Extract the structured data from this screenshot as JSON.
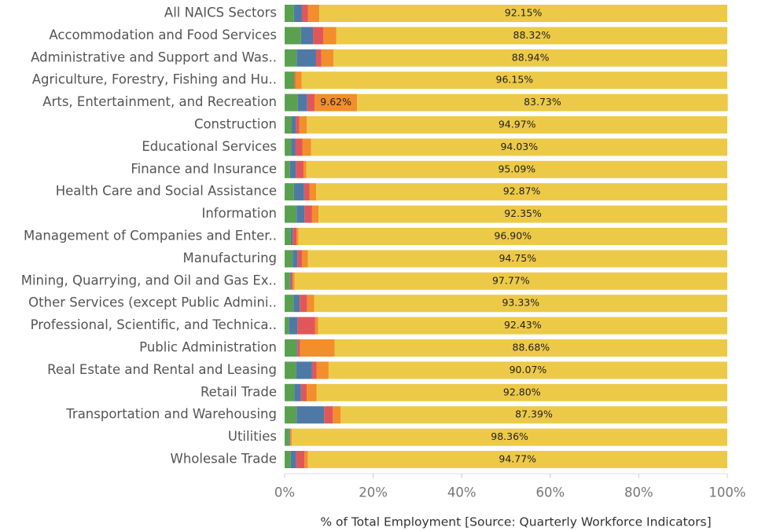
{
  "chart_data": {
    "type": "stacked_barh",
    "categories": [
      "All NAICS Sectors",
      "Accommodation and Food Services",
      "Administrative and Support and Was..",
      "Agriculture, Forestry, Fishing and Hu..",
      "Arts, Entertainment, and Recreation",
      "Construction",
      "Educational Services",
      "Finance and Insurance",
      "Health Care and Social Assistance",
      "Information",
      "Management of Companies and Enter..",
      "Manufacturing",
      "Mining, Quarrying, and Oil and Gas Ex..",
      "Other Services (except Public Admini..",
      "Professional, Scientific, and Technica..",
      "Public Administration",
      "Real Estate and Rental and Leasing",
      "Retail Trade",
      "Transportation and Warehousing",
      "Utilities",
      "Wholesale Trade"
    ],
    "series": [
      {
        "color": "#59a14f",
        "values": [
          2.1,
          3.7,
          2.7,
          2.2,
          3.0,
          1.6,
          1.5,
          1.2,
          2.1,
          2.7,
          1.4,
          1.8,
          1.2,
          2.0,
          1.0,
          2.7,
          2.6,
          2.2,
          2.7,
          1.0,
          1.4
        ]
      },
      {
        "color": "#4e79a7",
        "values": [
          1.8,
          2.7,
          4.4,
          0,
          2.1,
          0.9,
          0.9,
          1.3,
          2.3,
          1.8,
          0.4,
          1.1,
          0.2,
          1.4,
          1.9,
          0.2,
          3.6,
          1.5,
          6.2,
          0.2,
          1.2
        ]
      },
      {
        "color": "#e15759",
        "values": [
          1.4,
          2.3,
          1.2,
          0.2,
          1.66,
          0.8,
          1.6,
          1.8,
          1.2,
          1.7,
          0.9,
          1.0,
          0.4,
          1.7,
          4.0,
          0.6,
          1.0,
          1.3,
          2.0,
          0.1,
          1.9
        ]
      },
      {
        "color": "#f28e2b",
        "values": [
          2.55,
          2.98,
          2.76,
          1.45,
          9.62,
          1.73,
          1.97,
          0.61,
          1.53,
          1.45,
          0.4,
          1.35,
          0.43,
          1.57,
          0.67,
          7.82,
          2.73,
          2.2,
          1.71,
          0.34,
          0.73
        ],
        "value_labels": [
          null,
          null,
          null,
          null,
          "9.62%",
          null,
          null,
          null,
          null,
          null,
          null,
          null,
          null,
          null,
          null,
          null,
          null,
          null,
          null,
          null,
          null
        ]
      },
      {
        "color": "#edc948",
        "values": [
          92.15,
          88.32,
          88.94,
          96.15,
          83.73,
          94.97,
          94.03,
          95.09,
          92.87,
          92.35,
          96.9,
          94.75,
          97.77,
          93.33,
          92.43,
          88.68,
          90.07,
          92.8,
          87.39,
          98.36,
          94.77
        ],
        "value_labels": [
          "92.15%",
          "88.32%",
          "88.94%",
          "96.15%",
          "83.73%",
          "94.97%",
          "94.03%",
          "95.09%",
          "92.87%",
          "92.35%",
          "96.90%",
          "94.75%",
          "97.77%",
          "93.33%",
          "92.43%",
          "88.68%",
          "90.07%",
          "92.80%",
          "87.39%",
          "98.36%",
          "94.77%"
        ]
      }
    ],
    "xlim": [
      0,
      100
    ],
    "xticks": [
      {
        "value": 0,
        "label": "0%"
      },
      {
        "value": 20,
        "label": "20%"
      },
      {
        "value": 40,
        "label": "40%"
      },
      {
        "value": 60,
        "label": "60%"
      },
      {
        "value": 80,
        "label": "80%"
      },
      {
        "value": 100,
        "label": "100%"
      }
    ],
    "x_label": "% of Total Employment [Source: Quarterly Workforce Indicators]"
  }
}
